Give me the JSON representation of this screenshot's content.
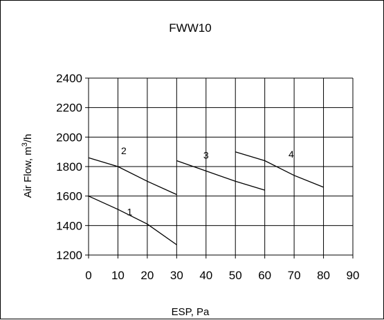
{
  "chart_data": {
    "type": "line",
    "title": "FWW10",
    "xlabel": "ESP, Pa",
    "ylabel": "Air Flow, m",
    "ylabel_sup": "3",
    "ylabel_suffix": "/h",
    "xlim": [
      0,
      90
    ],
    "ylim": [
      1200,
      2400
    ],
    "xticks": [
      0,
      10,
      20,
      30,
      40,
      50,
      60,
      70,
      80,
      90
    ],
    "yticks": [
      1200,
      1400,
      1600,
      1800,
      2000,
      2200,
      2400
    ],
    "grid": true,
    "legend": "none",
    "series": [
      {
        "name": "1",
        "x": [
          0,
          10,
          20,
          30
        ],
        "y": [
          1600,
          1510,
          1410,
          1270
        ]
      },
      {
        "name": "2",
        "x": [
          0,
          10,
          20,
          30
        ],
        "y": [
          1860,
          1800,
          1700,
          1610
        ]
      },
      {
        "name": "3",
        "x": [
          30,
          40,
          50,
          60
        ],
        "y": [
          1840,
          1770,
          1700,
          1640
        ]
      },
      {
        "name": "4",
        "x": [
          50,
          60,
          70,
          80
        ],
        "y": [
          1900,
          1840,
          1740,
          1660
        ]
      }
    ],
    "curve_labels": [
      {
        "text": "1",
        "x": 14,
        "y": 1470
      },
      {
        "text": "2",
        "x": 12,
        "y": 1885
      },
      {
        "text": "3",
        "x": 40,
        "y": 1855
      },
      {
        "text": "4",
        "x": 69,
        "y": 1860
      }
    ],
    "line_color": "#000000",
    "grid_color": "#000000"
  }
}
